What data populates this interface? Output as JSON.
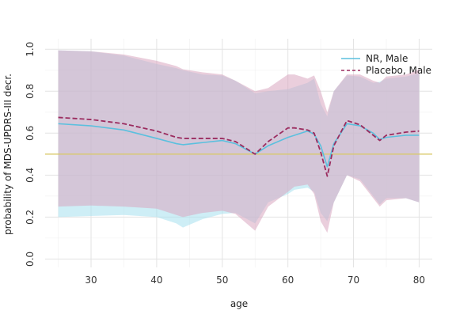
{
  "chart_data": {
    "type": "line",
    "title": "",
    "xlabel": "age",
    "ylabel": "probability of MDS-UPDRS-III decr.",
    "xlim": [
      23,
      82
    ],
    "ylim": [
      -0.04,
      1.05
    ],
    "xticks": [
      30,
      40,
      50,
      60,
      70,
      80
    ],
    "yticks": [
      0.0,
      0.2,
      0.4,
      0.6,
      0.8,
      1.0
    ],
    "xtick_labels": [
      "30",
      "40",
      "50",
      "60",
      "70",
      "80"
    ],
    "ytick_labels": [
      "0.0",
      "0.2",
      "0.4",
      "0.6",
      "0.8",
      "1.0"
    ],
    "grid": true,
    "legend_position": "top-right",
    "reference_line": {
      "y": 0.5,
      "color": "#d9c96a"
    },
    "series": [
      {
        "name": "NR, Male",
        "color": "#5bc0de",
        "band_color": "#a6e0ef",
        "line_style": "solid",
        "points": [
          {
            "x": 25,
            "y": 0.645,
            "lo": 0.2,
            "hi": 0.995
          },
          {
            "x": 30,
            "y": 0.635,
            "lo": 0.205,
            "hi": 0.99
          },
          {
            "x": 35,
            "y": 0.615,
            "lo": 0.21,
            "hi": 0.97
          },
          {
            "x": 40,
            "y": 0.575,
            "lo": 0.2,
            "hi": 0.93
          },
          {
            "x": 43,
            "y": 0.55,
            "lo": 0.17,
            "hi": 0.91
          },
          {
            "x": 44,
            "y": 0.545,
            "lo": 0.15,
            "hi": 0.9
          },
          {
            "x": 47,
            "y": 0.555,
            "lo": 0.19,
            "hi": 0.88
          },
          {
            "x": 50,
            "y": 0.565,
            "lo": 0.215,
            "hi": 0.875
          },
          {
            "x": 52,
            "y": 0.55,
            "lo": 0.22,
            "hi": 0.85
          },
          {
            "x": 55,
            "y": 0.5,
            "lo": 0.17,
            "hi": 0.79
          },
          {
            "x": 57,
            "y": 0.54,
            "lo": 0.27,
            "hi": 0.8
          },
          {
            "x": 60,
            "y": 0.58,
            "lo": 0.31,
            "hi": 0.81
          },
          {
            "x": 61,
            "y": 0.59,
            "lo": 0.33,
            "hi": 0.82
          },
          {
            "x": 63,
            "y": 0.61,
            "lo": 0.34,
            "hi": 0.84
          },
          {
            "x": 64,
            "y": 0.595,
            "lo": 0.32,
            "hi": 0.86
          },
          {
            "x": 65,
            "y": 0.54,
            "lo": 0.22,
            "hi": 0.74
          },
          {
            "x": 66,
            "y": 0.44,
            "lo": 0.18,
            "hi": 0.68
          },
          {
            "x": 67,
            "y": 0.55,
            "lo": 0.27,
            "hi": 0.8
          },
          {
            "x": 69,
            "y": 0.645,
            "lo": 0.4,
            "hi": 0.875
          },
          {
            "x": 71,
            "y": 0.635,
            "lo": 0.38,
            "hi": 0.87
          },
          {
            "x": 73,
            "y": 0.6,
            "lo": 0.3,
            "hi": 0.84
          },
          {
            "x": 74,
            "y": 0.57,
            "lo": 0.26,
            "hi": 0.845
          },
          {
            "x": 75,
            "y": 0.58,
            "lo": 0.29,
            "hi": 0.86
          },
          {
            "x": 78,
            "y": 0.59,
            "lo": 0.29,
            "hi": 0.87
          },
          {
            "x": 80,
            "y": 0.59,
            "lo": 0.27,
            "hi": 0.885
          }
        ]
      },
      {
        "name": "Placebo, Male",
        "color": "#9b2c5f",
        "band_color": "#d9a5bf",
        "line_style": "dashed",
        "points": [
          {
            "x": 25,
            "y": 0.675,
            "lo": 0.25,
            "hi": 0.995
          },
          {
            "x": 30,
            "y": 0.665,
            "lo": 0.255,
            "hi": 0.99
          },
          {
            "x": 35,
            "y": 0.645,
            "lo": 0.25,
            "hi": 0.975
          },
          {
            "x": 40,
            "y": 0.61,
            "lo": 0.24,
            "hi": 0.945
          },
          {
            "x": 43,
            "y": 0.58,
            "lo": 0.21,
            "hi": 0.92
          },
          {
            "x": 44,
            "y": 0.575,
            "lo": 0.2,
            "hi": 0.905
          },
          {
            "x": 47,
            "y": 0.575,
            "lo": 0.22,
            "hi": 0.89
          },
          {
            "x": 50,
            "y": 0.575,
            "lo": 0.23,
            "hi": 0.88
          },
          {
            "x": 52,
            "y": 0.56,
            "lo": 0.215,
            "hi": 0.85
          },
          {
            "x": 55,
            "y": 0.5,
            "lo": 0.135,
            "hi": 0.8
          },
          {
            "x": 57,
            "y": 0.56,
            "lo": 0.25,
            "hi": 0.815
          },
          {
            "x": 60,
            "y": 0.625,
            "lo": 0.32,
            "hi": 0.88
          },
          {
            "x": 61,
            "y": 0.625,
            "lo": 0.345,
            "hi": 0.88
          },
          {
            "x": 63,
            "y": 0.615,
            "lo": 0.355,
            "hi": 0.86
          },
          {
            "x": 64,
            "y": 0.6,
            "lo": 0.31,
            "hi": 0.875
          },
          {
            "x": 65,
            "y": 0.51,
            "lo": 0.18,
            "hi": 0.8
          },
          {
            "x": 66,
            "y": 0.395,
            "lo": 0.125,
            "hi": 0.7
          },
          {
            "x": 67,
            "y": 0.54,
            "lo": 0.27,
            "hi": 0.8
          },
          {
            "x": 69,
            "y": 0.66,
            "lo": 0.4,
            "hi": 0.88
          },
          {
            "x": 71,
            "y": 0.64,
            "lo": 0.37,
            "hi": 0.88
          },
          {
            "x": 73,
            "y": 0.59,
            "lo": 0.29,
            "hi": 0.85
          },
          {
            "x": 74,
            "y": 0.565,
            "lo": 0.25,
            "hi": 0.84
          },
          {
            "x": 75,
            "y": 0.59,
            "lo": 0.28,
            "hi": 0.87
          },
          {
            "x": 78,
            "y": 0.605,
            "lo": 0.29,
            "hi": 0.88
          },
          {
            "x": 80,
            "y": 0.61,
            "lo": 0.27,
            "hi": 0.905
          }
        ]
      }
    ]
  }
}
